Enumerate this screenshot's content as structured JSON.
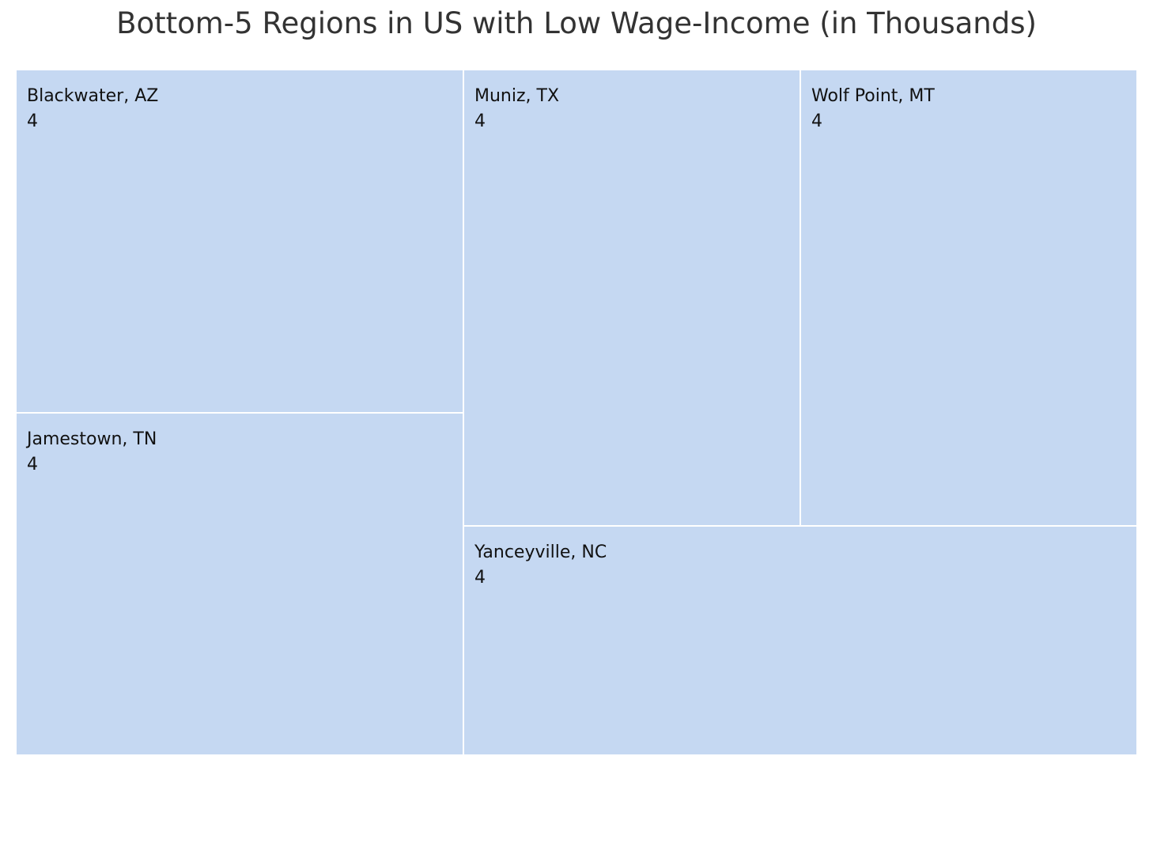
{
  "chart_data": {
    "type": "treemap",
    "title": "Bottom-5 Regions in US with Low Wage-Income (in Thousands)",
    "unit": "Thousands",
    "items": [
      {
        "label": "Blackwater, AZ",
        "value": 4
      },
      {
        "label": "Jamestown, TN",
        "value": 4
      },
      {
        "label": "Muniz, TX",
        "value": 4
      },
      {
        "label": "Wolf Point, MT",
        "value": 4
      },
      {
        "label": "Yanceyville, NC",
        "value": 4
      }
    ],
    "colors": {
      "tile": "#c5d8f2",
      "border": "#ffffff",
      "title": "#333333",
      "label": "#111111"
    }
  }
}
